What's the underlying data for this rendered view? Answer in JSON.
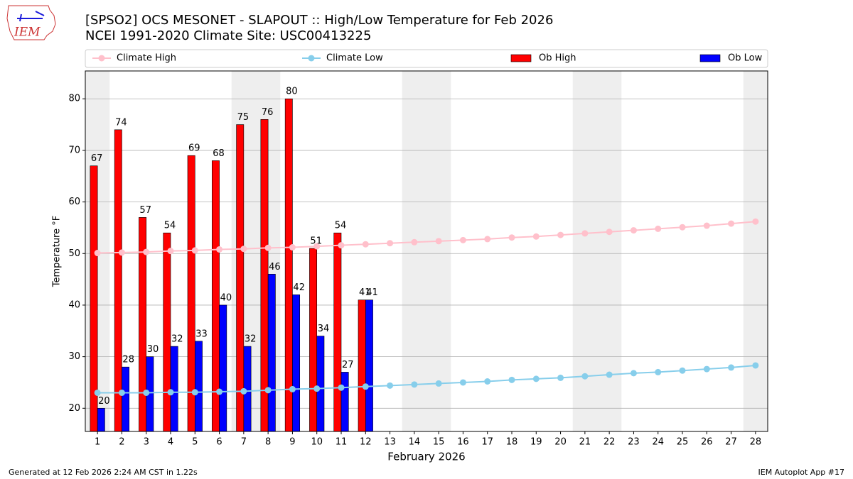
{
  "logo_text": "IEM",
  "footer": {
    "left": "Generated at 12 Feb 2026 2:24 AM CST in 1.22s",
    "right": "IEM Autoplot App #17"
  },
  "chart_data": {
    "type": "bar",
    "title": "[SPSO2] OCS MESONET - SLAPOUT :: High/Low Temperature for Feb 2026",
    "subtitle": "NCEI 1991-2020 Climate Site: USC00413225",
    "x_label": "February 2026",
    "y_label": "Temperature °F",
    "x": [
      1,
      2,
      3,
      4,
      5,
      6,
      7,
      8,
      9,
      10,
      11,
      12,
      13,
      14,
      15,
      16,
      17,
      18,
      19,
      20,
      21,
      22,
      23,
      24,
      25,
      26,
      27,
      28
    ],
    "xlim": [
      0.5,
      28.5
    ],
    "xticks": [
      1,
      2,
      3,
      4,
      5,
      6,
      7,
      8,
      9,
      10,
      11,
      12,
      13,
      14,
      15,
      16,
      17,
      18,
      19,
      20,
      21,
      22,
      23,
      24,
      25,
      26,
      27,
      28
    ],
    "ylim": [
      15.5,
      85.4
    ],
    "yticks": [
      20,
      30,
      40,
      50,
      60,
      70,
      80
    ],
    "grid": true,
    "shaded_x": [
      1,
      7,
      8,
      14,
      15,
      21,
      22,
      28
    ],
    "series": [
      {
        "name": "Climate High",
        "type": "line",
        "color": "#ffc0cb",
        "values": [
          50.1,
          50.2,
          50.3,
          50.5,
          50.6,
          50.8,
          50.9,
          51.1,
          51.2,
          51.4,
          51.6,
          51.8,
          52.0,
          52.2,
          52.4,
          52.6,
          52.8,
          53.1,
          53.3,
          53.6,
          53.9,
          54.2,
          54.5,
          54.8,
          55.1,
          55.4,
          55.8,
          56.2
        ]
      },
      {
        "name": "Climate Low",
        "type": "line",
        "color": "#87ceeb",
        "values": [
          23.0,
          23.0,
          23.0,
          23.1,
          23.1,
          23.2,
          23.3,
          23.5,
          23.7,
          23.8,
          24.0,
          24.2,
          24.4,
          24.6,
          24.8,
          25.0,
          25.2,
          25.5,
          25.7,
          25.9,
          26.2,
          26.5,
          26.8,
          27.0,
          27.3,
          27.6,
          27.9,
          28.3
        ]
      },
      {
        "name": "Ob High",
        "type": "bar",
        "color": "#ff0000",
        "values": [
          67,
          74,
          57,
          54,
          69,
          68,
          75,
          76,
          80,
          51,
          54,
          41,
          null,
          null,
          null,
          null,
          null,
          null,
          null,
          null,
          null,
          null,
          null,
          null,
          null,
          null,
          null,
          null
        ]
      },
      {
        "name": "Ob Low",
        "type": "bar",
        "color": "#0000ff",
        "values": [
          20,
          28,
          30,
          32,
          33,
          40,
          32,
          46,
          42,
          34,
          27,
          41,
          null,
          null,
          null,
          null,
          null,
          null,
          null,
          null,
          null,
          null,
          null,
          null,
          null,
          null,
          null,
          null
        ]
      }
    ]
  }
}
